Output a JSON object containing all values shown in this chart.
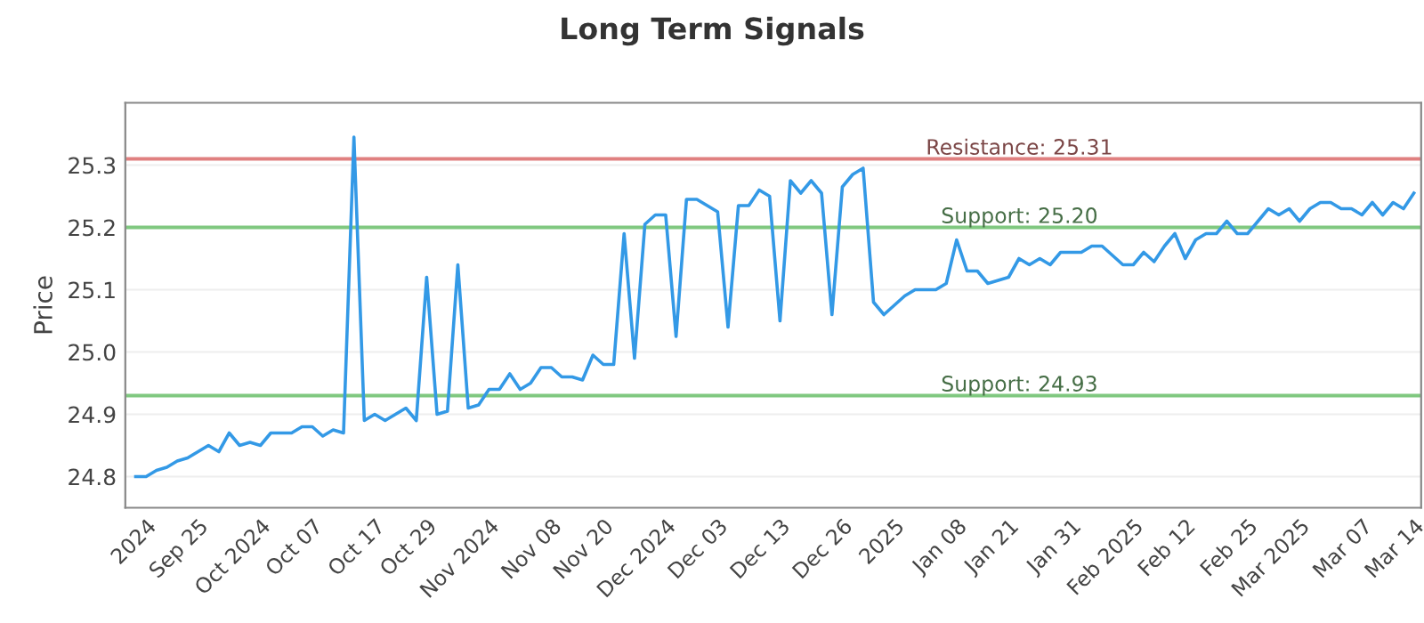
{
  "chart_data": {
    "type": "line",
    "title": "Long Term Signals",
    "ylabel": "Price",
    "categories": [
      null,
      "2024",
      null,
      null,
      null,
      null,
      "Sep 25",
      null,
      null,
      null,
      null,
      null,
      "Oct 2024",
      null,
      null,
      null,
      null,
      "Oct 07",
      null,
      null,
      null,
      null,
      null,
      "Oct 17",
      null,
      null,
      null,
      null,
      "Oct 29",
      null,
      null,
      null,
      null,
      null,
      "Nov 2024",
      null,
      null,
      null,
      null,
      null,
      "Nov 08",
      null,
      null,
      null,
      null,
      "Nov 20",
      null,
      null,
      null,
      null,
      null,
      "Dec 2024",
      null,
      null,
      null,
      null,
      "Dec 03",
      null,
      null,
      null,
      null,
      null,
      "Dec 13",
      null,
      null,
      null,
      null,
      null,
      "Dec 26",
      null,
      null,
      null,
      null,
      "2025",
      null,
      null,
      null,
      null,
      null,
      "Jan 08",
      null,
      null,
      null,
      null,
      "Jan 21",
      null,
      null,
      null,
      null,
      null,
      "Jan 31",
      null,
      null,
      null,
      null,
      null,
      "Feb 2025",
      null,
      null,
      null,
      null,
      "Feb 12",
      null,
      null,
      null,
      null,
      null,
      "Feb 25",
      null,
      null,
      null,
      null,
      "Mar 2025",
      null,
      null,
      null,
      null,
      null,
      "Mar 07",
      null,
      null,
      null,
      null,
      "Mar 14"
    ],
    "series": [
      {
        "color": "#3399e6",
        "values": [
          24.8,
          24.8,
          24.81,
          24.815,
          24.825,
          24.83,
          24.84,
          24.85,
          24.84,
          24.87,
          24.85,
          24.855,
          24.85,
          24.87,
          24.87,
          24.87,
          24.88,
          24.88,
          24.865,
          24.875,
          24.87,
          25.345,
          24.89,
          24.9,
          24.89,
          24.9,
          24.91,
          24.89,
          25.12,
          24.9,
          24.905,
          25.14,
          24.91,
          24.915,
          24.94,
          24.94,
          24.965,
          24.94,
          24.95,
          24.975,
          24.975,
          24.96,
          24.96,
          24.955,
          24.995,
          24.98,
          24.98,
          25.19,
          24.99,
          25.205,
          25.22,
          25.22,
          25.025,
          25.245,
          25.245,
          25.235,
          25.225,
          25.04,
          25.235,
          25.235,
          25.26,
          25.25,
          25.05,
          25.275,
          25.255,
          25.275,
          25.255,
          25.06,
          25.265,
          25.285,
          25.295,
          25.08,
          25.06,
          25.075,
          25.09,
          25.1,
          25.1,
          25.1,
          25.11,
          25.18,
          25.13,
          25.13,
          25.11,
          25.115,
          25.12,
          25.15,
          25.14,
          25.15,
          25.14,
          25.16,
          25.16,
          25.16,
          25.17,
          25.17,
          25.155,
          25.14,
          25.14,
          25.16,
          25.145,
          25.17,
          25.19,
          25.15,
          25.18,
          25.19,
          25.19,
          25.21,
          25.19,
          25.19,
          25.21,
          25.23,
          25.22,
          25.23,
          25.21,
          25.23,
          25.24,
          25.24,
          25.23,
          25.23,
          25.22,
          25.24,
          25.22,
          25.24,
          25.23,
          25.255
        ]
      }
    ],
    "ylim": [
      24.75,
      25.4
    ],
    "yticks": [
      24.8,
      24.9,
      {
        "value": 25.0,
        "label": "25.0"
      },
      25.1,
      25.2,
      25.3
    ],
    "grid": "y",
    "marker": "none",
    "line_style": "solid",
    "ref_lines": [
      {
        "axis": "y",
        "value": 25.31,
        "label": "Resistance: 25.31",
        "color": "#e08080"
      },
      {
        "axis": "y",
        "value": 25.2,
        "label": "Support: 25.20",
        "color": "#80c880"
      },
      {
        "axis": "y",
        "value": 24.93,
        "label": "Support: 24.93",
        "color": "#80c880"
      }
    ]
  }
}
